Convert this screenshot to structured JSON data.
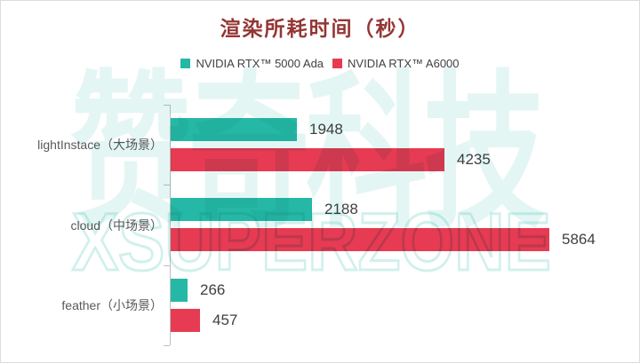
{
  "title": "渲染所耗时间（秒）",
  "title_color": "#943634",
  "watermark": {
    "cn": "赞奇科技",
    "en": "XSUPERZONE",
    "color": "#2bb9a8"
  },
  "chart_data": {
    "type": "bar",
    "orientation": "horizontal",
    "title": "渲染所耗时间（秒）",
    "xlabel": "",
    "ylabel": "",
    "categories": [
      "lightInstace（大场景）",
      "cloud（中场景）",
      "feather（小场景）"
    ],
    "series": [
      {
        "name": "NVIDIA RTX™ 5000 Ada",
        "color": "#26b8a6",
        "values": [
          1948,
          2188,
          266
        ]
      },
      {
        "name": "NVIDIA RTX™ A6000",
        "color": "#e63b52",
        "values": [
          4235,
          5864,
          457
        ]
      }
    ],
    "value_labels_shown": true,
    "xlim": [
      0,
      6200
    ],
    "grid": false,
    "legend_position": "top",
    "axis_color": "#bfbfbf"
  }
}
